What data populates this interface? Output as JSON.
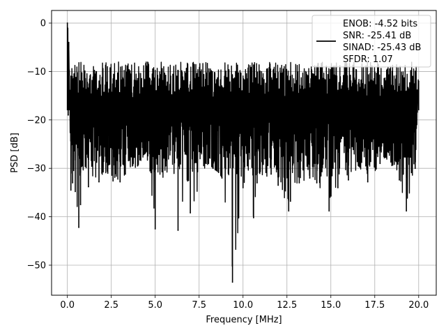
{
  "chart_data": {
    "type": "line",
    "title": "",
    "xlabel": "Frequency [MHz]",
    "ylabel": "PSD [dB]",
    "xlim": [
      -0.9,
      21.0
    ],
    "ylim": [
      -56.2,
      2.6
    ],
    "xticks": [
      0.0,
      2.5,
      5.0,
      7.5,
      10.0,
      12.5,
      15.0,
      17.5,
      20.0
    ],
    "xtick_labels": [
      "0.0",
      "2.5",
      "5.0",
      "7.5",
      "10.0",
      "12.5",
      "15.0",
      "17.5",
      "20.0"
    ],
    "yticks": [
      0,
      -10,
      -20,
      -30,
      -40,
      -50
    ],
    "ytick_labels": [
      "0",
      "−10",
      "−20",
      "−30",
      "−40",
      "−50"
    ],
    "grid": true,
    "legend_position": "top-right",
    "series": [
      {
        "color": "#000000",
        "noise_floor": {
          "upper_envelope_db": -7,
          "typical_low_db": -28,
          "x_range": [
            0.0,
            20.0
          ]
        },
        "points": [
          [
            0.0,
            0.0
          ],
          [
            0.02,
            -6.5
          ],
          [
            0.05,
            -19
          ],
          [
            0.08,
            -4
          ],
          [
            0.12,
            -15
          ],
          [
            0.2,
            -34.5
          ],
          [
            0.3,
            -33
          ],
          [
            0.45,
            -34.8
          ],
          [
            0.65,
            -42.2
          ],
          [
            0.75,
            -37.5
          ],
          [
            1.2,
            -33.8
          ],
          [
            1.8,
            -32.8
          ],
          [
            2.3,
            -31
          ],
          [
            2.6,
            -32.6
          ],
          [
            3.0,
            -32.8
          ],
          [
            3.3,
            -31.2
          ],
          [
            4.0,
            -29.5
          ],
          [
            4.5,
            -26.5
          ],
          [
            5.0,
            -42.5
          ],
          [
            5.6,
            -29.5
          ],
          [
            6.3,
            -42.8
          ],
          [
            6.9,
            -32.5
          ],
          [
            7.0,
            -39.2
          ],
          [
            7.9,
            -29
          ],
          [
            8.6,
            -30.8
          ],
          [
            8.8,
            -32
          ],
          [
            9.4,
            -53.5
          ],
          [
            10.0,
            -34
          ],
          [
            10.6,
            -40.2
          ],
          [
            10.8,
            -33
          ],
          [
            11.6,
            -31.2
          ],
          [
            12.0,
            -33.5
          ],
          [
            12.6,
            -38.8
          ],
          [
            12.7,
            -36.8
          ],
          [
            13.2,
            -33
          ],
          [
            13.8,
            -32
          ],
          [
            14.2,
            -33
          ],
          [
            14.9,
            -38.8
          ],
          [
            15.4,
            -34
          ],
          [
            16.0,
            -32.4
          ],
          [
            16.6,
            -29.5
          ],
          [
            17.1,
            -32.8
          ],
          [
            17.8,
            -29
          ],
          [
            18.1,
            -27.6
          ],
          [
            18.9,
            -32.4
          ],
          [
            19.3,
            -38.8
          ],
          [
            19.8,
            -30
          ],
          [
            20.0,
            -12
          ]
        ],
        "legend_labels": [
          "ENOB: -4.52 bits",
          "SNR: -25.41 dB",
          "SINAD: -25.43 dB",
          "SFDR: 1.07"
        ]
      }
    ]
  }
}
